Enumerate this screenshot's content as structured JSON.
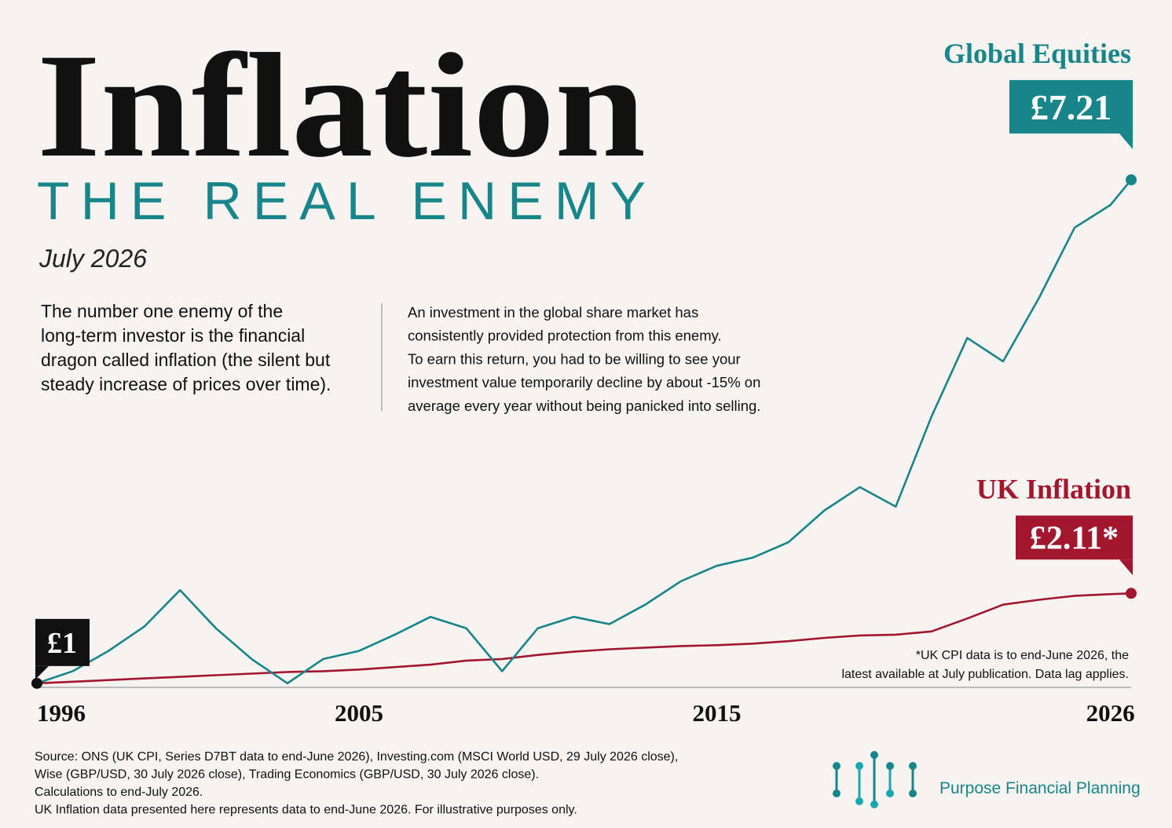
{
  "header": {
    "title": "Inflation",
    "subtitle": "THE REAL ENEMY",
    "date": "July 2026"
  },
  "text": {
    "intro": [
      "The number one enemy of the",
      "long-term investor is the financial",
      "dragon called inflation (the silent but",
      "steady increase of prices over time)."
    ],
    "body": [
      "An investment in the global share market has",
      "consistently provided protection from this enemy.",
      "To earn this return, you had to be willing to see your",
      "investment value temporarily decline by about -15% on",
      "average every year without being panicked into selling."
    ]
  },
  "chart_data": {
    "type": "line",
    "x": [
      1996,
      1997,
      1998,
      1999,
      2000,
      2001,
      2002,
      2003,
      2004,
      2005,
      2006,
      2007,
      2008,
      2009,
      2010,
      2011,
      2012,
      2013,
      2014,
      2015,
      2016,
      2017,
      2018,
      2019,
      2020,
      2021,
      2022,
      2023,
      2024,
      2025,
      2026,
      2026.58
    ],
    "series": [
      {
        "name": "Global Equities",
        "color": "#17858a",
        "values": [
          1.0,
          1.15,
          1.4,
          1.7,
          2.15,
          1.68,
          1.3,
          1.0,
          1.3,
          1.4,
          1.6,
          1.82,
          1.68,
          1.15,
          1.68,
          1.82,
          1.73,
          1.97,
          2.26,
          2.45,
          2.55,
          2.74,
          3.13,
          3.42,
          3.18,
          4.29,
          5.26,
          4.97,
          5.75,
          6.62,
          6.9,
          7.21
        ]
      },
      {
        "name": "UK Inflation",
        "color": "#a3172e",
        "values": [
          1.0,
          1.02,
          1.04,
          1.06,
          1.08,
          1.1,
          1.12,
          1.14,
          1.15,
          1.17,
          1.2,
          1.23,
          1.28,
          1.3,
          1.35,
          1.39,
          1.42,
          1.44,
          1.46,
          1.47,
          1.49,
          1.52,
          1.56,
          1.59,
          1.6,
          1.64,
          1.8,
          1.97,
          2.03,
          2.08,
          2.1,
          2.11
        ]
      }
    ],
    "callouts": [
      {
        "label": "£1",
        "value": 1,
        "color": "#111111"
      },
      {
        "label": "£7.21",
        "value": 7.21,
        "color": "#17858a"
      },
      {
        "label": "£2.11*",
        "value": 2.11,
        "color": "#a3172e"
      }
    ],
    "xlim": [
      1996,
      2026.58
    ],
    "xticks": [
      1996,
      2005,
      2015,
      2026
    ],
    "ylim": [
      0.95,
      7.5
    ],
    "footnote": [
      "*UK CPI data is to end-June 2026, the",
      "latest available at July publication. Data lag applies."
    ]
  },
  "footer": {
    "source": [
      "Source: ONS (UK CPI, Series D7BT data to end-June 2026), Investing.com (MSCI World USD, 29 July 2026 close),",
      "Wise (GBP/USD, 30 July 2026 close), Trading Economics (GBP/USD, 30 July 2026 close).",
      "Calculations to end-July 2026.",
      "UK Inflation data presented here represents data to end-June 2026. For illustrative purposes only."
    ],
    "brand": "Purpose Financial Planning"
  }
}
